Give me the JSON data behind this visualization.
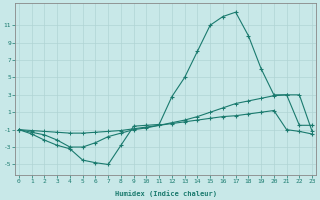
{
  "line1_x": [
    0,
    1,
    2,
    3,
    4,
    5,
    6,
    7,
    8,
    9,
    10,
    11,
    12,
    13,
    14,
    15,
    16,
    17,
    18,
    19,
    20,
    21,
    22,
    23
  ],
  "line1_y": [
    -1,
    -1.5,
    -2.2,
    -2.8,
    -3.2,
    -4.5,
    -4.8,
    -5.0,
    -2.8,
    -0.6,
    -0.5,
    -0.4,
    2.8,
    5.0,
    8.0,
    11.0,
    12.0,
    12.5,
    9.8,
    6.0,
    3.0,
    3.0,
    -0.5,
    -0.5
  ],
  "line2_x": [
    0,
    1,
    2,
    3,
    4,
    5,
    6,
    7,
    8,
    9,
    10,
    11,
    12,
    13,
    14,
    15,
    16,
    17,
    18,
    19,
    20,
    21,
    22,
    23
  ],
  "line2_y": [
    -1,
    -1.1,
    -1.2,
    -1.3,
    -1.4,
    -1.4,
    -1.3,
    -1.2,
    -1.1,
    -0.9,
    -0.7,
    -0.5,
    -0.2,
    0.1,
    0.5,
    1.0,
    1.5,
    2.0,
    2.3,
    2.6,
    2.9,
    3.0,
    3.0,
    -1.2
  ],
  "line3_x": [
    0,
    1,
    2,
    3,
    4,
    5,
    6,
    7,
    8,
    9,
    10,
    11,
    12,
    13,
    14,
    15,
    16,
    17,
    18,
    19,
    20,
    21,
    22,
    23
  ],
  "line3_y": [
    -1,
    -1.3,
    -1.6,
    -2.2,
    -3.0,
    -3.0,
    -2.5,
    -1.8,
    -1.4,
    -1.0,
    -0.8,
    -0.5,
    -0.3,
    -0.1,
    0.1,
    0.3,
    0.5,
    0.6,
    0.8,
    1.0,
    1.2,
    -1.0,
    -1.2,
    -1.5
  ],
  "line_color": "#1a7a6e",
  "bg_color": "#c8e8e8",
  "grid_color": "#b0d4d4",
  "xlabel": "Humidex (Indice chaleur)",
  "yticks": [
    -5,
    -3,
    -1,
    1,
    3,
    5,
    7,
    9,
    11
  ],
  "xticks": [
    0,
    1,
    2,
    3,
    4,
    5,
    6,
    7,
    8,
    9,
    10,
    11,
    12,
    13,
    14,
    15,
    16,
    17,
    18,
    19,
    20,
    21,
    22,
    23
  ],
  "ylim": [
    -6.2,
    13.5
  ],
  "xlim": [
    -0.3,
    23.3
  ]
}
